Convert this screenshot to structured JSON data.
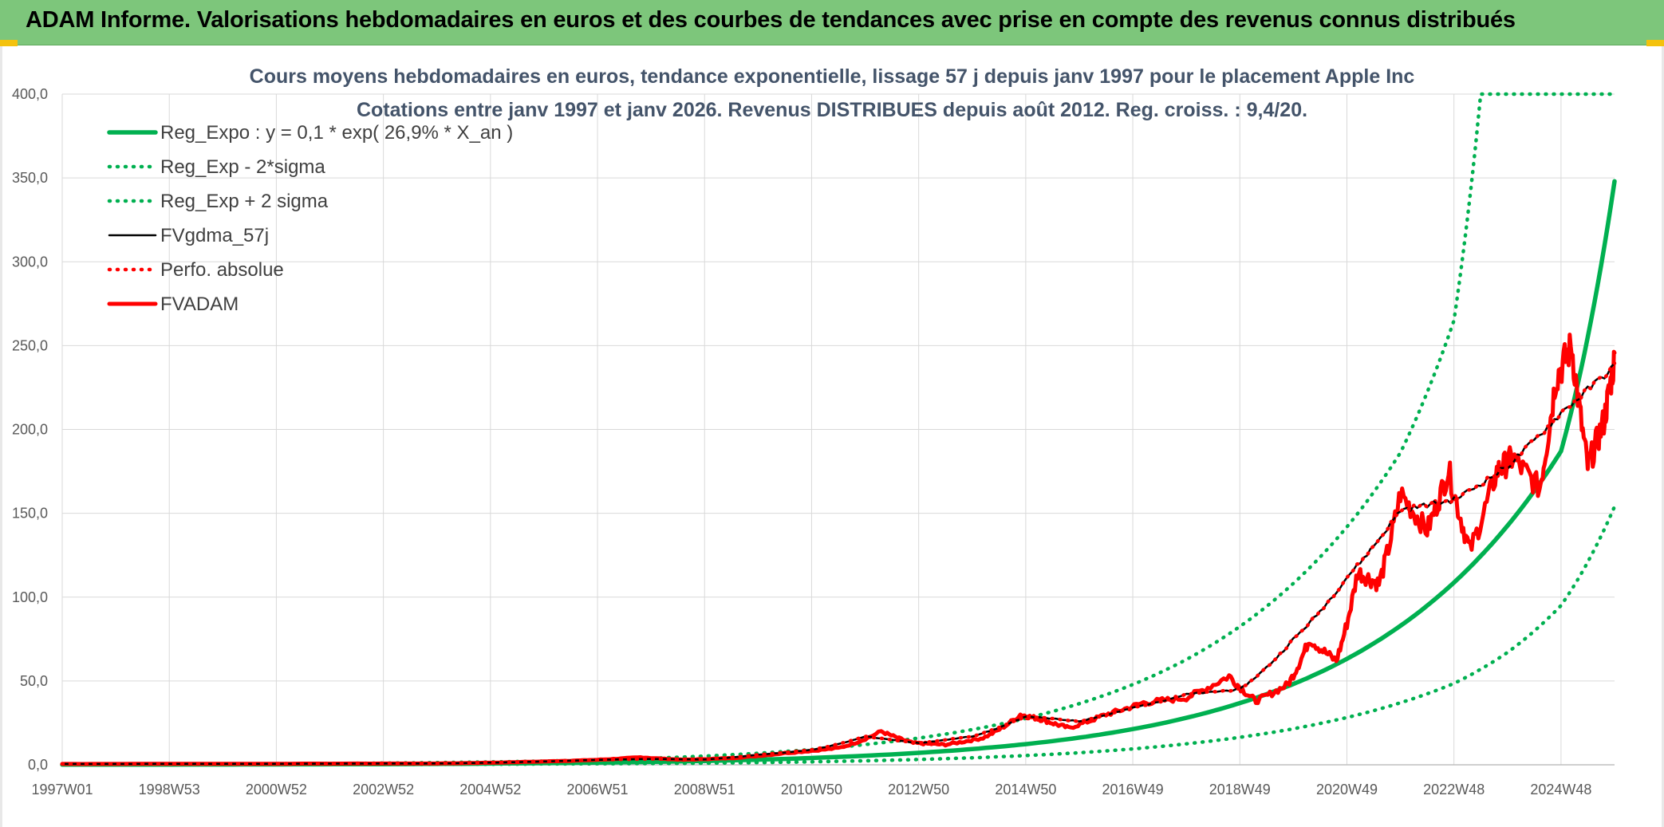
{
  "header": {
    "title": "ADAM Informe. Valorisations hebdomadaires en euros et des courbes de tendances avec prise en compte des revenus connus distribués"
  },
  "colors": {
    "banner": "#7dc67b",
    "trend_green": "#00b050",
    "gdma_black": "#000000",
    "adam_red": "#ff0000"
  },
  "chart_data": {
    "type": "line",
    "title_line1": "Cours moyens hebdomadaires en euros, tendance exponentielle, lissage 57 j depuis janv 1997 pour le placement Apple Inc",
    "title_line2": "Cotations entre janv 1997 et janv 2026. Revenus DISTRIBUES depuis août 2012. Reg. croiss. : 9,4/20.",
    "xlabel": "",
    "ylabel": "",
    "x_range": [
      1997.0,
      2026.0
    ],
    "ylim": [
      0,
      400
    ],
    "y_ticks": [
      "0,0",
      "50,0",
      "100,0",
      "150,0",
      "200,0",
      "250,0",
      "300,0",
      "350,0",
      "400,0"
    ],
    "x_ticks": [
      {
        "label": "1997W01",
        "year": 1997.0
      },
      {
        "label": "1998W53",
        "year": 1999.0
      },
      {
        "label": "2000W52",
        "year": 2001.0
      },
      {
        "label": "2002W52",
        "year": 2003.0
      },
      {
        "label": "2004W52",
        "year": 2005.0
      },
      {
        "label": "2006W51",
        "year": 2007.0
      },
      {
        "label": "2008W51",
        "year": 2009.0
      },
      {
        "label": "2010W50",
        "year": 2011.0
      },
      {
        "label": "2012W50",
        "year": 2013.0
      },
      {
        "label": "2014W50",
        "year": 2015.0
      },
      {
        "label": "2016W49",
        "year": 2017.0
      },
      {
        "label": "2018W49",
        "year": 2019.0
      },
      {
        "label": "2020W49",
        "year": 2021.0
      },
      {
        "label": "2022W48",
        "year": 2023.0
      },
      {
        "label": "2024W48",
        "year": 2025.0
      }
    ],
    "grid": true,
    "legend_position": "top-left",
    "series": [
      {
        "name": "Reg_Expo : y = 0,1 * exp( 26,9% *  X_an )",
        "style": "solid-thick",
        "color": "#00b050",
        "x": [
          1997,
          2000,
          2003,
          2006,
          2009,
          2012,
          2014,
          2016,
          2018,
          2019,
          2020,
          2021,
          2022,
          2023,
          2024,
          2025,
          2026
        ],
        "y": [
          0.1,
          0.2,
          0.4,
          1.0,
          2.3,
          5.4,
          9.4,
          16.2,
          28.0,
          36.8,
          48.2,
          63.2,
          82.9,
          108.7,
          142.6,
          187.0,
          348.0
        ]
      },
      {
        "name": "Reg_Exp - 2*sigma",
        "style": "dotted",
        "color": "#00b050",
        "x": [
          1997,
          2000,
          2003,
          2006,
          2009,
          2012,
          2014,
          2016,
          2018,
          2019,
          2020,
          2021,
          2022,
          2023,
          2024,
          2025,
          2026
        ],
        "y": [
          0.0,
          0.1,
          0.2,
          0.5,
          1.0,
          2.4,
          4.2,
          7.2,
          12.5,
          16.4,
          21.5,
          28.2,
          37.0,
          48.5,
          67.0,
          95.0,
          154.0
        ]
      },
      {
        "name": "Reg_Exp + 2 sigma",
        "style": "dotted",
        "color": "#00b050",
        "x": [
          1997,
          2000,
          2003,
          2006,
          2009,
          2012,
          2014,
          2016,
          2018,
          2019,
          2020,
          2021,
          2022,
          2023,
          2023.5,
          2026
        ],
        "y": [
          0.2,
          0.5,
          1.0,
          2.2,
          5.2,
          12.1,
          21.0,
          36.5,
          62.8,
          82.5,
          108.2,
          141.9,
          186.2,
          265.0,
          400.0,
          400.0
        ]
      },
      {
        "name": "FVgdma_57j",
        "style": "solid",
        "color": "#000000",
        "x": [
          1997,
          2000,
          2004,
          2006,
          2007,
          2008,
          2009,
          2010,
          2011,
          2012,
          2013,
          2014,
          2015,
          2016,
          2017,
          2018,
          2019,
          2020,
          2021,
          2022,
          2023,
          2024,
          2025,
          2026
        ],
        "y": [
          0.5,
          0.6,
          0.8,
          2.0,
          3.0,
          3.5,
          3.2,
          6.0,
          9.0,
          17.0,
          13.0,
          17.0,
          29.0,
          26.0,
          34.0,
          42.0,
          45.0,
          75.0,
          112.0,
          152.0,
          158.0,
          178.0,
          210.0,
          238.0
        ]
      },
      {
        "name": "Perfo. absolue",
        "style": "dotted",
        "color": "#ff0000",
        "x": [
          1997,
          2000,
          2004,
          2006,
          2007,
          2008,
          2009,
          2010,
          2011,
          2012,
          2013,
          2014,
          2015,
          2016,
          2017,
          2018,
          2019,
          2020,
          2021,
          2022,
          2023,
          2024,
          2025,
          2026
        ],
        "y": [
          0.5,
          0.6,
          0.8,
          2.0,
          3.0,
          3.5,
          3.2,
          6.0,
          9.0,
          17.0,
          13.0,
          17.0,
          29.0,
          26.0,
          34.0,
          42.0,
          45.0,
          75.0,
          112.0,
          152.0,
          158.0,
          178.0,
          210.0,
          238.0
        ]
      },
      {
        "name": "FVADAM",
        "style": "solid-thick",
        "color": "#ff0000",
        "x": [
          1997,
          2000,
          2004,
          2006,
          2007,
          2007.8,
          2008.6,
          2009.5,
          2010.5,
          2011.5,
          2012.3,
          2012.9,
          2013.5,
          2014.2,
          2014.9,
          2015.3,
          2015.8,
          2016.5,
          2017.2,
          2018.0,
          2018.8,
          2019.3,
          2019.9,
          2020.3,
          2020.8,
          2021.2,
          2021.6,
          2022.0,
          2022.5,
          2022.9,
          2023.3,
          2023.8,
          2024.1,
          2024.6,
          2024.9,
          2025.2,
          2025.5,
          2025.8,
          2026.0
        ],
        "y": [
          0.5,
          0.6,
          0.8,
          2.0,
          3.0,
          4.5,
          3.0,
          4.0,
          7.0,
          10.0,
          20.0,
          13.0,
          12.0,
          16.0,
          30.0,
          27.0,
          22.0,
          30.0,
          37.0,
          40.0,
          53.0,
          38.0,
          48.0,
          75.0,
          62.0,
          115.0,
          108.0,
          162.0,
          140.0,
          176.0,
          128.0,
          175.0,
          183.0,
          165.0,
          230.0,
          250.0,
          178.0,
          205.0,
          242.0
        ]
      }
    ]
  }
}
